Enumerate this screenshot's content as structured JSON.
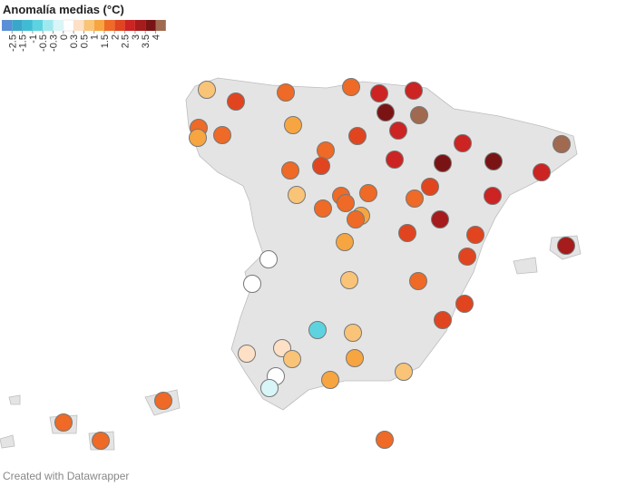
{
  "map": {
    "title": "Anomalía medias (°C)",
    "legend": {
      "ticks": [
        -2.5,
        -1.5,
        -1,
        -0.5,
        -0.3,
        0,
        0.3,
        0.5,
        1,
        1.5,
        2,
        2.5,
        3,
        3.5,
        4
      ],
      "colors": [
        "#5b8fd6",
        "#3aa6c9",
        "#3fbcd4",
        "#5dd3e0",
        "#9fe8ee",
        "#d8f5f7",
        "#ffffff",
        "#fde0c5",
        "#f9c478",
        "#f7a541",
        "#ee6a26",
        "#e0451f",
        "#cc2323",
        "#a61b1b",
        "#7a1414",
        "#a06a50"
      ]
    },
    "stations": {
      "values": [
        0.7,
        2.2,
        1.7,
        1.7,
        2.7,
        2.7,
        1.7,
        1.2,
        1.7,
        1.2,
        3.7,
        4.2,
        2.7,
        2.2,
        1.7,
        2.2,
        1.7,
        2.7,
        2.7,
        3.7,
        3.7,
        4.2,
        2.7,
        0.7,
        1.7,
        1.7,
        1.7,
        1.7,
        2.2,
        2.7,
        1.7,
        1.2,
        1.7,
        3.2,
        2.2,
        2.2,
        3.2,
        1.2,
        0.1,
        2.2,
        0.1,
        0.7,
        1.7,
        2.2,
        2.2,
        -0.7,
        0.7,
        0.4,
        0.4,
        0.7,
        1.2,
        0.1,
        -0.1,
        1.2,
        0.7,
        1.7,
        1.7,
        1.7,
        1.7
      ]
    }
  },
  "footer": "Created with Datawrapper"
}
